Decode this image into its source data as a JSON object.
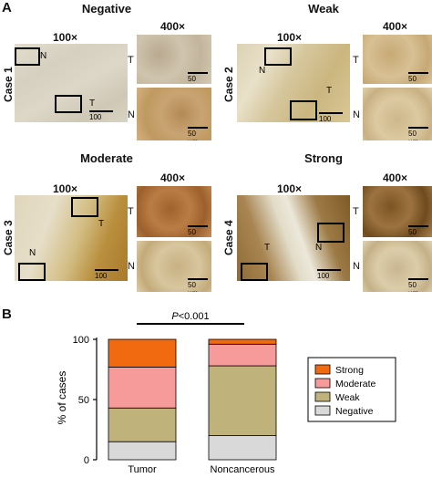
{
  "panel_a": {
    "letter": "A",
    "grades": [
      "Negative",
      "Weak",
      "Moderate",
      "Strong"
    ],
    "cases": [
      "Case 1",
      "Case 2",
      "Case 3",
      "Case 4"
    ],
    "mag_low": "100×",
    "mag_high": "400×",
    "region_tumor": "T",
    "region_normal": "N",
    "scale_low": "100 μm",
    "scale_high": "50 μm"
  },
  "panel_b": {
    "letter": "B",
    "p_value_prefix": "P",
    "p_value_suffix": "<0.001"
  },
  "chart_data": {
    "type": "bar",
    "stacked": true,
    "categories": [
      "Tumor",
      "Noncancerous"
    ],
    "series": [
      {
        "name": "Negative",
        "values": [
          15,
          20
        ],
        "color": "#d9d9d9"
      },
      {
        "name": "Weak",
        "values": [
          28,
          58
        ],
        "color": "#bfb27a"
      },
      {
        "name": "Moderate",
        "values": [
          34,
          18
        ],
        "color": "#f79a9a"
      },
      {
        "name": "Strong",
        "values": [
          23,
          4
        ],
        "color": "#f26a10"
      }
    ],
    "ylabel": "% of cases",
    "ylim": [
      0,
      100
    ],
    "yticks": [
      "0",
      "50",
      "100"
    ],
    "legend_order": [
      "Strong",
      "Moderate",
      "Weak",
      "Negative"
    ],
    "legend_position": "right",
    "grid": false
  }
}
